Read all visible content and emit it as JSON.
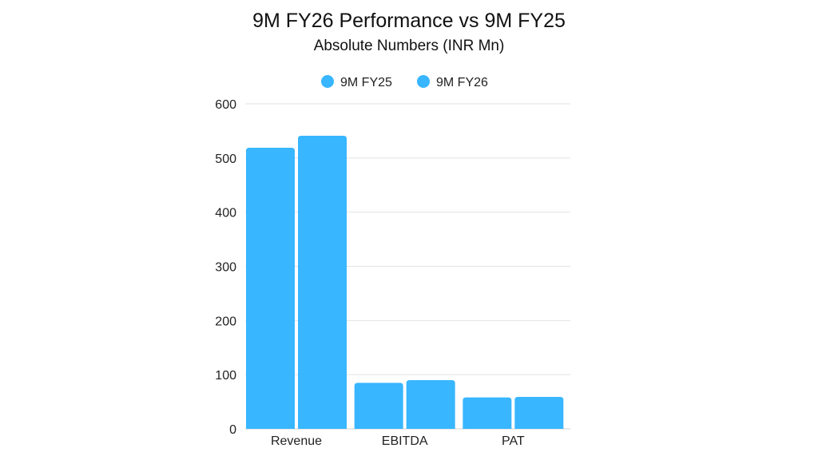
{
  "chart_data": {
    "type": "bar",
    "title": "9M FY26 Performance vs 9M FY25",
    "subtitle": "Absolute Numbers (INR Mn)",
    "categories": [
      "Revenue",
      "EBITDA",
      "PAT"
    ],
    "series": [
      {
        "name": "9M FY25",
        "values": [
          519,
          85,
          58
        ],
        "color": "#38b6ff"
      },
      {
        "name": "9M FY26",
        "values": [
          541,
          90,
          59
        ],
        "color": "#38b6ff"
      }
    ],
    "xlabel": "",
    "ylabel": "",
    "ylim": [
      0,
      600
    ],
    "yticks": [
      0,
      100,
      200,
      300,
      400,
      500,
      600
    ],
    "grid": true,
    "legend": "top-center"
  }
}
